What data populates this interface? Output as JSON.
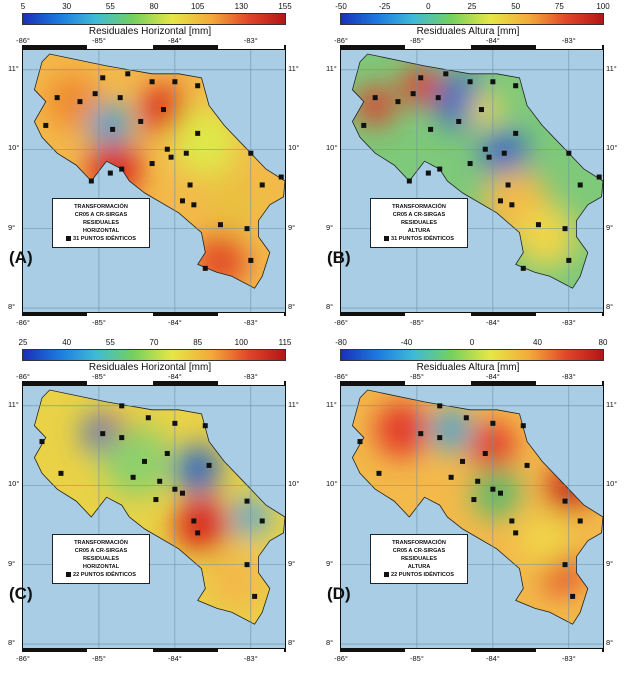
{
  "panels": [
    {
      "id": "A",
      "label": "(A)",
      "colorbar": {
        "title": "Residuales Horizontal [mm]",
        "ticks": [
          "5",
          "30",
          "55",
          "80",
          "105",
          "130",
          "155"
        ],
        "scheme": "rainbow"
      },
      "legend": {
        "lines": [
          "TRANSFORMACIÓN",
          "CR05 A CR-SIRGAS",
          "RESIDUALES",
          "HORIZONTAL"
        ],
        "points": "31 PUNTOS IDÉNTICOS"
      },
      "base_color": "#f3b94a",
      "blobs": [
        {
          "lon": -85.35,
          "lat": 10.6,
          "c": "#f08a2e",
          "r": 0.35
        },
        {
          "lon": -84.85,
          "lat": 10.3,
          "c": "#3fa3d6",
          "r": 0.28
        },
        {
          "lon": -84.8,
          "lat": 9.75,
          "c": "#d9281e",
          "r": 0.35
        },
        {
          "lon": -84.15,
          "lat": 10.5,
          "c": "#d9281e",
          "r": 0.3
        },
        {
          "lon": -83.6,
          "lat": 10.1,
          "c": "#dfe84a",
          "r": 0.45
        },
        {
          "lon": -83.2,
          "lat": 9.3,
          "c": "#eac040",
          "r": 0.4
        },
        {
          "lon": -83.4,
          "lat": 8.6,
          "c": "#e24b25",
          "r": 0.35
        }
      ]
    },
    {
      "id": "B",
      "label": "(B)",
      "colorbar": {
        "title": "Residuales Altura [mm]",
        "ticks": [
          "-50",
          "-25",
          "0",
          "25",
          "50",
          "75",
          "100"
        ],
        "scheme": "rainbow"
      },
      "legend": {
        "lines": [
          "TRANSFORMACIÓN",
          "CR05 A CR-SIRGAS",
          "RESIDUALES",
          "ALTURA"
        ],
        "points": "31 PUNTOS IDÉNTICOS"
      },
      "base_color": "#7ec97a",
      "blobs": [
        {
          "lon": -85.55,
          "lat": 10.55,
          "c": "#e2382a",
          "r": 0.25
        },
        {
          "lon": -84.95,
          "lat": 10.8,
          "c": "#e2382a",
          "r": 0.25
        },
        {
          "lon": -84.4,
          "lat": 10.6,
          "c": "#2f66c6",
          "r": 0.35
        },
        {
          "lon": -83.85,
          "lat": 9.95,
          "c": "#2f66c6",
          "r": 0.3
        },
        {
          "lon": -84.1,
          "lat": 10.5,
          "c": "#f0d548",
          "r": 0.22
        },
        {
          "lon": -83.7,
          "lat": 9.3,
          "c": "#f3b94a",
          "r": 0.45
        },
        {
          "lon": -83.3,
          "lat": 8.9,
          "c": "#f0d548",
          "r": 0.4
        }
      ]
    },
    {
      "id": "C",
      "label": "(C)",
      "colorbar": {
        "title": "Residuales Horizontal [mm]",
        "ticks": [
          "25",
          "40",
          "55",
          "70",
          "85",
          "100",
          "115"
        ],
        "scheme": "rainbow"
      },
      "legend": {
        "lines": [
          "TRANSFORMACIÓN",
          "CR05 A CR-SIRGAS",
          "RESIDUALES",
          "HORIZONTAL"
        ],
        "points": "22 PUNTOS IDÉNTICOS"
      },
      "base_color": "#e9d246",
      "blobs": [
        {
          "lon": -84.95,
          "lat": 10.65,
          "c": "#2f66c6",
          "r": 0.25
        },
        {
          "lon": -84.7,
          "lat": 10.6,
          "c": "#e2382a",
          "r": 0.22
        },
        {
          "lon": -83.7,
          "lat": 10.2,
          "c": "#2f66c6",
          "r": 0.3
        },
        {
          "lon": -83.65,
          "lat": 9.5,
          "c": "#d9281e",
          "r": 0.35
        },
        {
          "lon": -83.0,
          "lat": 9.6,
          "c": "#5aa6dc",
          "r": 0.25
        },
        {
          "lon": -84.5,
          "lat": 10.3,
          "c": "#8dd06c",
          "r": 0.45
        },
        {
          "lon": -83.2,
          "lat": 8.8,
          "c": "#f3b94a",
          "r": 0.4
        }
      ]
    },
    {
      "id": "D",
      "label": "(D)",
      "colorbar": {
        "title": "Residuales Altura [mm]",
        "ticks": [
          "-80",
          "-40",
          "0",
          "40",
          "80"
        ],
        "scheme": "rainbow"
      },
      "legend": {
        "lines": [
          "TRANSFORMACIÓN",
          "CR05 A CR-SIRGAS",
          "RESIDUALES",
          "ALTURA"
        ],
        "points": "22 PUNTOS IDÉNTICOS"
      },
      "base_color": "#f3b94a",
      "blobs": [
        {
          "lon": -85.2,
          "lat": 10.7,
          "c": "#e2382a",
          "r": 0.35
        },
        {
          "lon": -84.55,
          "lat": 10.7,
          "c": "#4aa7cf",
          "r": 0.28
        },
        {
          "lon": -84.0,
          "lat": 10.5,
          "c": "#e2382a",
          "r": 0.3
        },
        {
          "lon": -83.95,
          "lat": 9.9,
          "c": "#5fb86a",
          "r": 0.32
        },
        {
          "lon": -83.0,
          "lat": 9.95,
          "c": "#c62d1f",
          "r": 0.3
        },
        {
          "lon": -83.1,
          "lat": 8.95,
          "c": "#e2382a",
          "r": 0.3
        },
        {
          "lon": -83.3,
          "lat": 9.3,
          "c": "#f0d548",
          "r": 0.35
        }
      ]
    }
  ],
  "stations_31": [
    [
      -85.55,
      10.65
    ],
    [
      -85.25,
      10.6
    ],
    [
      -85.05,
      10.7
    ],
    [
      -84.95,
      10.9
    ],
    [
      -84.72,
      10.65
    ],
    [
      -84.62,
      10.95
    ],
    [
      -84.3,
      10.85
    ],
    [
      -84.15,
      10.5
    ],
    [
      -84.0,
      10.85
    ],
    [
      -83.7,
      10.8
    ],
    [
      -84.82,
      10.25
    ],
    [
      -84.7,
      9.75
    ],
    [
      -85.1,
      9.6
    ],
    [
      -84.85,
      9.7
    ],
    [
      -84.3,
      9.82
    ],
    [
      -84.1,
      10.0
    ],
    [
      -84.05,
      9.9
    ],
    [
      -83.85,
      9.95
    ],
    [
      -83.7,
      10.2
    ],
    [
      -83.8,
      9.55
    ],
    [
      -83.9,
      9.35
    ],
    [
      -83.75,
      9.3
    ],
    [
      -83.0,
      9.95
    ],
    [
      -82.85,
      9.55
    ],
    [
      -83.4,
      9.05
    ],
    [
      -83.05,
      9.0
    ],
    [
      -83.0,
      8.6
    ],
    [
      -82.6,
      9.65
    ],
    [
      -83.6,
      8.5
    ],
    [
      -85.7,
      10.3
    ],
    [
      -84.45,
      10.35
    ]
  ],
  "stations_22": [
    [
      -85.75,
      10.55
    ],
    [
      -84.95,
      10.65
    ],
    [
      -84.7,
      10.6
    ],
    [
      -84.7,
      11.0
    ],
    [
      -84.35,
      10.85
    ],
    [
      -84.0,
      10.78
    ],
    [
      -83.6,
      10.75
    ],
    [
      -84.1,
      10.4
    ],
    [
      -84.25,
      9.82
    ],
    [
      -84.0,
      9.95
    ],
    [
      -83.75,
      9.55
    ],
    [
      -83.7,
      9.4
    ],
    [
      -83.9,
      9.9
    ],
    [
      -83.05,
      9.8
    ],
    [
      -82.85,
      9.55
    ],
    [
      -83.05,
      9.0
    ],
    [
      -82.95,
      8.6
    ],
    [
      -84.2,
      10.05
    ],
    [
      -84.4,
      10.3
    ],
    [
      -83.55,
      10.25
    ],
    [
      -85.5,
      10.15
    ],
    [
      -84.55,
      10.1
    ]
  ],
  "axes": {
    "lon_labels": [
      "-86°",
      "-85°",
      "-84°",
      "-83°"
    ],
    "lat_labels": [
      "11°",
      "10°",
      "9°",
      "8°"
    ]
  },
  "colors": {
    "sea": "#a8cde4",
    "station": "#111111"
  }
}
